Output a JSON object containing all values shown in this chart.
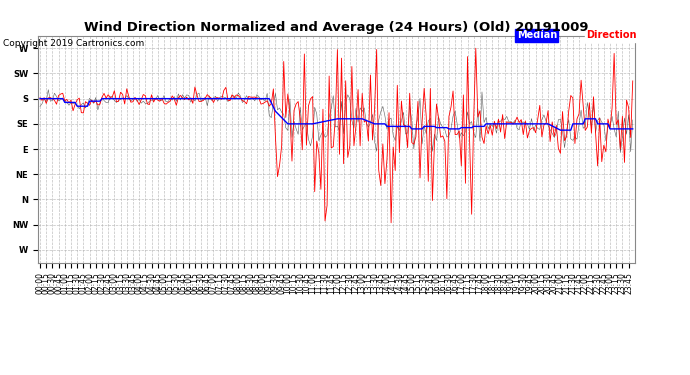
{
  "title": "Wind Direction Normalized and Average (24 Hours) (Old) 20191009",
  "copyright": "Copyright 2019 Cartronics.com",
  "legend_median_label": "Median",
  "legend_direction_label": "Direction",
  "legend_median_color": "#0000ff",
  "legend_median_bg": "#0000ff",
  "legend_direction_color": "#ff0000",
  "legend_direction_bg": "#ff0000",
  "background_color": "#ffffff",
  "grid_color": "#b0b0b0",
  "ytick_labels": [
    "W",
    "SW",
    "S",
    "SE",
    "E",
    "NE",
    "N",
    "NW",
    "W"
  ],
  "ytick_values": [
    0,
    1,
    2,
    3,
    4,
    5,
    6,
    7,
    8
  ],
  "red_color": "#ff0000",
  "blue_color": "#0000ff",
  "black_color": "#1a1a1a",
  "title_fontsize": 9.5,
  "copyright_fontsize": 6.5,
  "tick_fontsize": 6,
  "ylabel_fontsize": 7
}
